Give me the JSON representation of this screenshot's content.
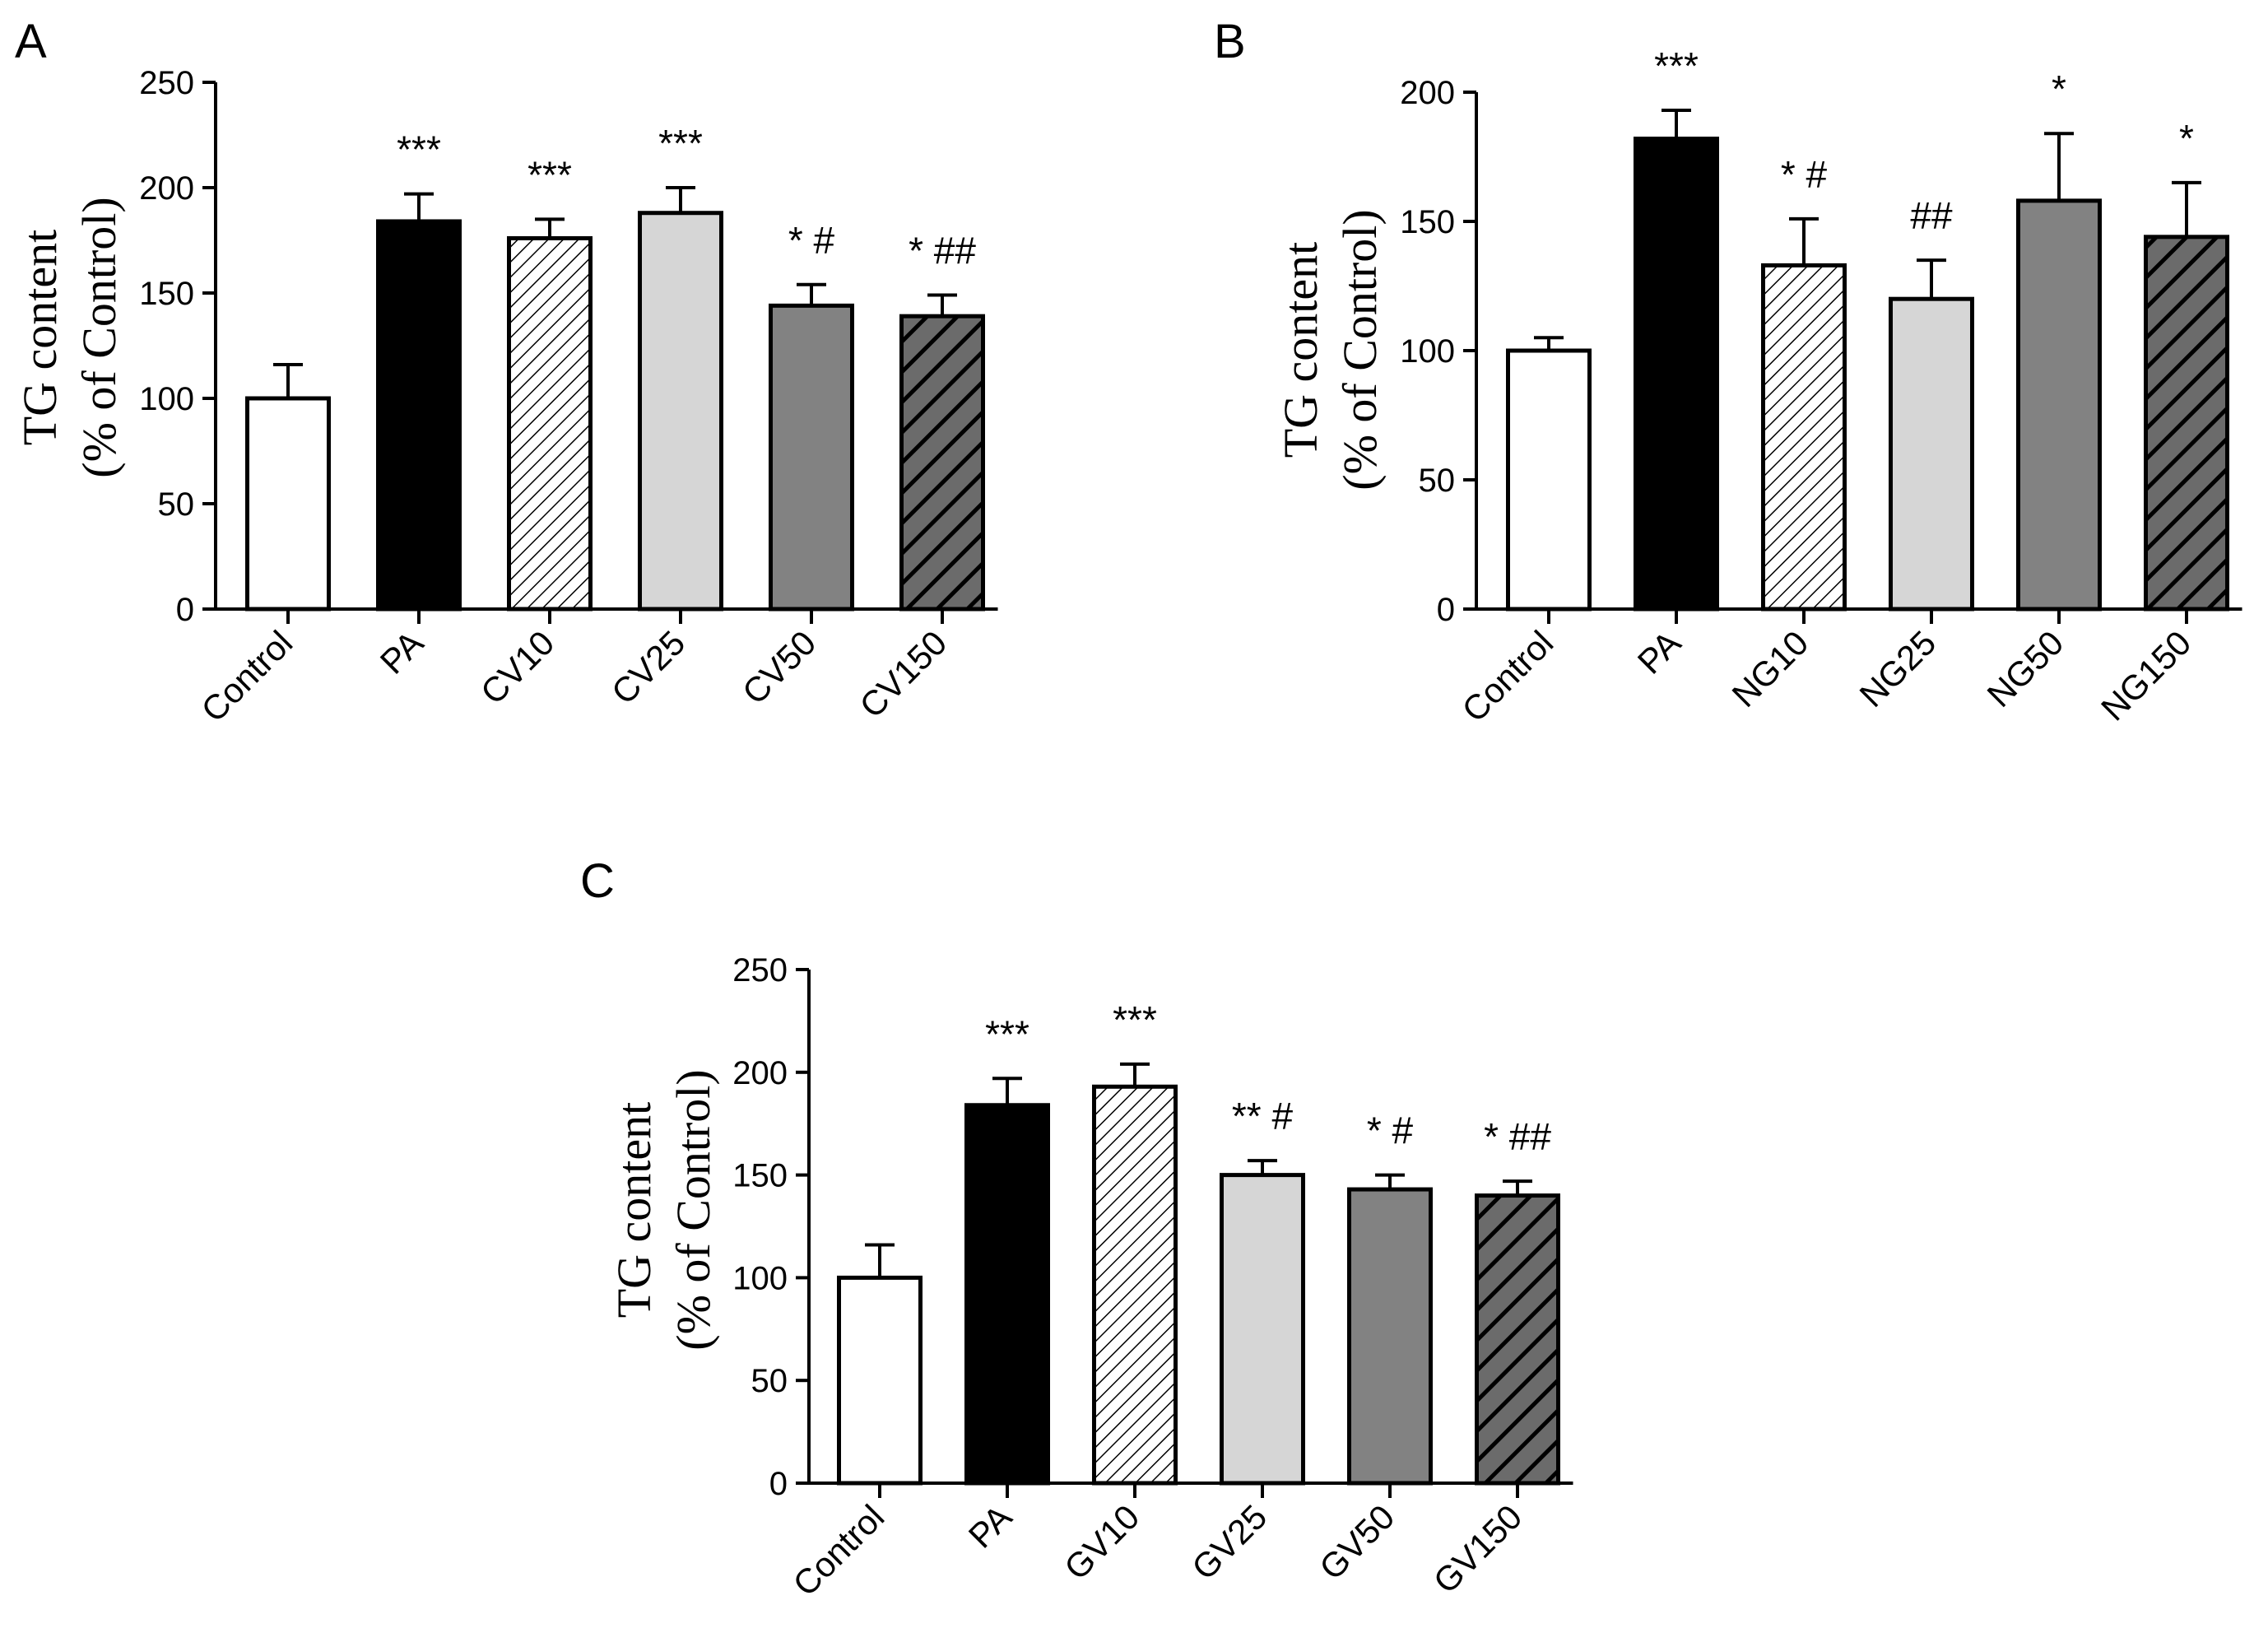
{
  "chart_data": [
    {
      "type": "bar",
      "panel": "A",
      "title": "",
      "ylabel": [
        "TG content",
        "(% of Control)"
      ],
      "xlabel": "",
      "ylim": [
        0,
        250
      ],
      "yticks": [
        0,
        50,
        100,
        150,
        200,
        250
      ],
      "categories": [
        "Control",
        "PA",
        "CV10",
        "CV25",
        "CV50",
        "CV150"
      ],
      "values": [
        100,
        184,
        176,
        188,
        144,
        139
      ],
      "errors": [
        16,
        13,
        9,
        12,
        10,
        10
      ],
      "annotations": [
        "",
        "***",
        "***",
        "***",
        "* #",
        "* ##"
      ],
      "fills": [
        "white",
        "black",
        "hatch-light",
        "lightgray",
        "gray",
        "hatch-dark"
      ]
    },
    {
      "type": "bar",
      "panel": "B",
      "title": "",
      "ylabel": [
        "TG content",
        "(% of Control)"
      ],
      "xlabel": "",
      "ylim": [
        0,
        200
      ],
      "yticks": [
        0,
        50,
        100,
        150,
        200
      ],
      "categories": [
        "Control",
        "PA",
        "NG10",
        "NG25",
        "NG50",
        "NG150"
      ],
      "values": [
        100,
        182,
        133,
        120,
        158,
        144
      ],
      "errors": [
        5,
        11,
        18,
        15,
        26,
        21
      ],
      "annotations": [
        "",
        "***",
        "* #",
        "##",
        "*",
        "*"
      ],
      "fills": [
        "white",
        "black",
        "hatch-light",
        "lightgray",
        "gray",
        "hatch-dark"
      ]
    },
    {
      "type": "bar",
      "panel": "C",
      "title": "",
      "ylabel": [
        "TG content",
        "(% of Control)"
      ],
      "xlabel": "",
      "ylim": [
        0,
        250
      ],
      "yticks": [
        0,
        50,
        100,
        150,
        200,
        250
      ],
      "categories": [
        "Control",
        "PA",
        "GV10",
        "GV25",
        "GV50",
        "GV150"
      ],
      "values": [
        100,
        184,
        193,
        150,
        143,
        140
      ],
      "errors": [
        16,
        13,
        11,
        7,
        7,
        7
      ],
      "annotations": [
        "",
        "***",
        "***",
        "** #",
        "* #",
        "* ##"
      ],
      "fills": [
        "white",
        "black",
        "hatch-light",
        "lightgray",
        "gray",
        "hatch-dark"
      ]
    }
  ],
  "colors": {
    "white": "#ffffff",
    "black": "#000000",
    "lightgray": "#d6d6d6",
    "gray": "#828282",
    "hatchDarkBg": "#6b6b6b",
    "axis": "#000000"
  }
}
